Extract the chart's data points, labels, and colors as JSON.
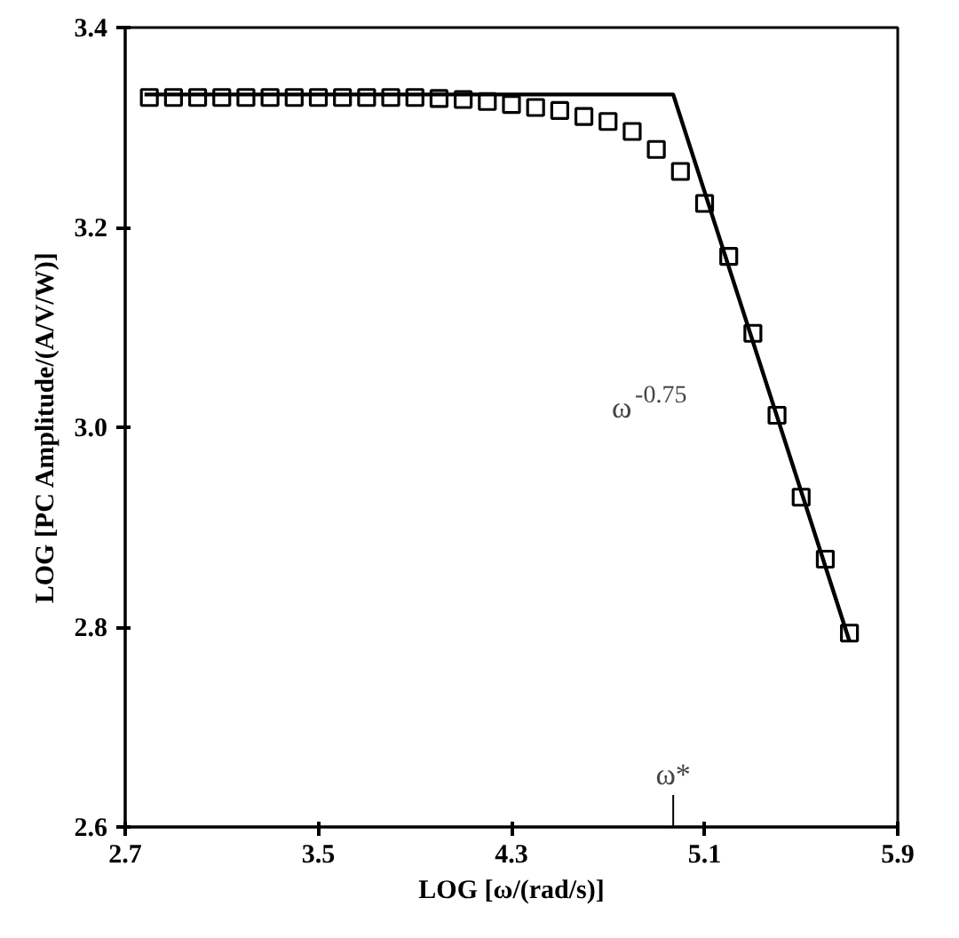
{
  "chart_data": {
    "type": "scatter",
    "xlabel": "LOG [ω/(rad/s)]",
    "ylabel": "LOG [PC Amplitude/(A/V/W)]",
    "xlim": [
      2.7,
      5.9
    ],
    "ylim": [
      2.6,
      3.4
    ],
    "xticks": [
      2.7,
      3.5,
      4.3,
      5.1,
      5.9
    ],
    "yticks": [
      2.6,
      2.8,
      {
        "value": 3.0,
        "label": "3.0"
      },
      3.2,
      3.4
    ],
    "grid": false,
    "series": [
      {
        "marker": "square",
        "color": "#000000",
        "x": [
          2.8,
          2.9,
          3.0,
          3.1,
          3.2,
          3.3,
          3.4,
          3.5,
          3.6,
          3.7,
          3.8,
          3.9,
          4.0,
          4.1,
          4.2,
          4.3,
          4.4,
          4.5,
          4.6,
          4.7,
          4.8,
          4.9,
          5.0,
          5.1,
          5.2,
          5.3,
          5.4,
          5.5,
          5.6,
          5.7
        ],
        "values": [
          3.33,
          3.33,
          3.33,
          3.33,
          3.33,
          3.33,
          3.33,
          3.33,
          3.33,
          3.33,
          3.33,
          3.33,
          3.329,
          3.328,
          3.326,
          3.323,
          3.32,
          3.317,
          3.311,
          3.306,
          3.296,
          3.278,
          3.256,
          3.224,
          3.171,
          3.094,
          3.012,
          2.93,
          2.868,
          2.794
        ]
      },
      {
        "type": "line",
        "line_style": "solid",
        "color": "#000000",
        "x": [
          2.78,
          4.97,
          5.7
        ],
        "values": [
          3.333,
          3.333,
          2.786
        ]
      }
    ],
    "ref_lines": [
      {
        "axis": "x",
        "value": 4.97,
        "label": "ω*"
      }
    ],
    "annotations": [
      "ω$^{-0.75}$"
    ]
  }
}
